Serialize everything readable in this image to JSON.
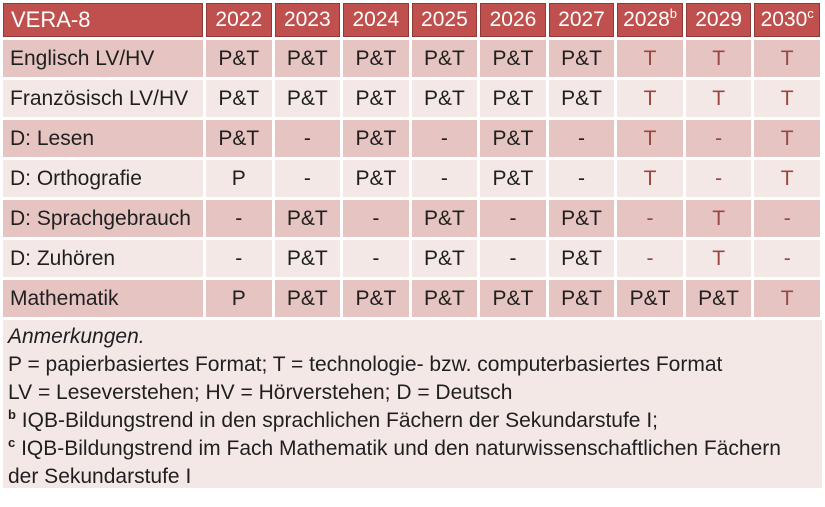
{
  "colors": {
    "header_bg": "#c0504d",
    "header_border": "#8e3a37",
    "header_text": "#ffffff",
    "band_dark": "#e6c4c2",
    "band_light": "#f4e8e7",
    "body_text": "#1f1f1f",
    "tech_red_text": "#9b4440",
    "gridline": "#ffffff"
  },
  "table": {
    "header": [
      {
        "label": "VERA-8"
      },
      {
        "label": "2022"
      },
      {
        "label": "2023"
      },
      {
        "label": "2024"
      },
      {
        "label": "2025"
      },
      {
        "label": "2026"
      },
      {
        "label": "2027"
      },
      {
        "label": "2028",
        "sup": "b"
      },
      {
        "label": "2029"
      },
      {
        "label": "2030",
        "sup": "c"
      }
    ],
    "rows": [
      {
        "subject": "Englisch LV/HV",
        "cells": [
          {
            "text": "P&T",
            "red": false
          },
          {
            "text": "P&T",
            "red": false
          },
          {
            "text": "P&T",
            "red": false
          },
          {
            "text": "P&T",
            "red": false
          },
          {
            "text": "P&T",
            "red": false
          },
          {
            "text": "P&T",
            "red": false
          },
          {
            "text": "T",
            "red": true
          },
          {
            "text": "T",
            "red": true
          },
          {
            "text": "T",
            "red": true
          }
        ]
      },
      {
        "subject": "Französisch LV/HV",
        "cells": [
          {
            "text": "P&T",
            "red": false
          },
          {
            "text": "P&T",
            "red": false
          },
          {
            "text": "P&T",
            "red": false
          },
          {
            "text": "P&T",
            "red": false
          },
          {
            "text": "P&T",
            "red": false
          },
          {
            "text": "P&T",
            "red": false
          },
          {
            "text": "T",
            "red": true
          },
          {
            "text": "T",
            "red": true
          },
          {
            "text": "T",
            "red": true
          }
        ]
      },
      {
        "subject": "D: Lesen",
        "cells": [
          {
            "text": "P&T",
            "red": false
          },
          {
            "text": "-",
            "red": false
          },
          {
            "text": "P&T",
            "red": false
          },
          {
            "text": "-",
            "red": false
          },
          {
            "text": "P&T",
            "red": false
          },
          {
            "text": "-",
            "red": false
          },
          {
            "text": "T",
            "red": true
          },
          {
            "text": "-",
            "red": true
          },
          {
            "text": "T",
            "red": true
          }
        ]
      },
      {
        "subject": "D: Orthografie",
        "cells": [
          {
            "text": "P",
            "red": false
          },
          {
            "text": "-",
            "red": false
          },
          {
            "text": "P&T",
            "red": false
          },
          {
            "text": "-",
            "red": false
          },
          {
            "text": "P&T",
            "red": false
          },
          {
            "text": "-",
            "red": false
          },
          {
            "text": "T",
            "red": true
          },
          {
            "text": "-",
            "red": true
          },
          {
            "text": "T",
            "red": true
          }
        ]
      },
      {
        "subject": "D: Sprachgebrauch",
        "cells": [
          {
            "text": "-",
            "red": false
          },
          {
            "text": "P&T",
            "red": false
          },
          {
            "text": "-",
            "red": false
          },
          {
            "text": "P&T",
            "red": false
          },
          {
            "text": "-",
            "red": false
          },
          {
            "text": "P&T",
            "red": false
          },
          {
            "text": "-",
            "red": true
          },
          {
            "text": "T",
            "red": true
          },
          {
            "text": "-",
            "red": true
          }
        ]
      },
      {
        "subject": "D: Zuhören",
        "cells": [
          {
            "text": "-",
            "red": false
          },
          {
            "text": "P&T",
            "red": false
          },
          {
            "text": "-",
            "red": false
          },
          {
            "text": "P&T",
            "red": false
          },
          {
            "text": "-",
            "red": false
          },
          {
            "text": "P&T",
            "red": false
          },
          {
            "text": "-",
            "red": true
          },
          {
            "text": "T",
            "red": true
          },
          {
            "text": "-",
            "red": true
          }
        ]
      },
      {
        "subject": "Mathematik",
        "cells": [
          {
            "text": "P",
            "red": false
          },
          {
            "text": "P&T",
            "red": false
          },
          {
            "text": "P&T",
            "red": false
          },
          {
            "text": "P&T",
            "red": false
          },
          {
            "text": "P&T",
            "red": false
          },
          {
            "text": "P&T",
            "red": false
          },
          {
            "text": "P&T",
            "red": false
          },
          {
            "text": "P&T",
            "red": false
          },
          {
            "text": "T",
            "red": true
          }
        ]
      }
    ]
  },
  "notes": {
    "lines": [
      {
        "text": "Anmerkungen.",
        "italic": true
      },
      {
        "text": "P = papierbasiertes Format; T = technologie- bzw. computerbasiertes Format"
      },
      {
        "text": "LV = Leseverstehen; HV = Hörverstehen; D = Deutsch"
      },
      {
        "sup": "b",
        "text": "IQB-Bildungstrend in den sprachlichen Fächern der Sekundarstufe I;"
      },
      {
        "sup": "c",
        "text": "IQB-Bildungstrend im Fach Mathematik und den naturwissenschaftlichen Fächern der Sekundarstufe I"
      }
    ]
  }
}
